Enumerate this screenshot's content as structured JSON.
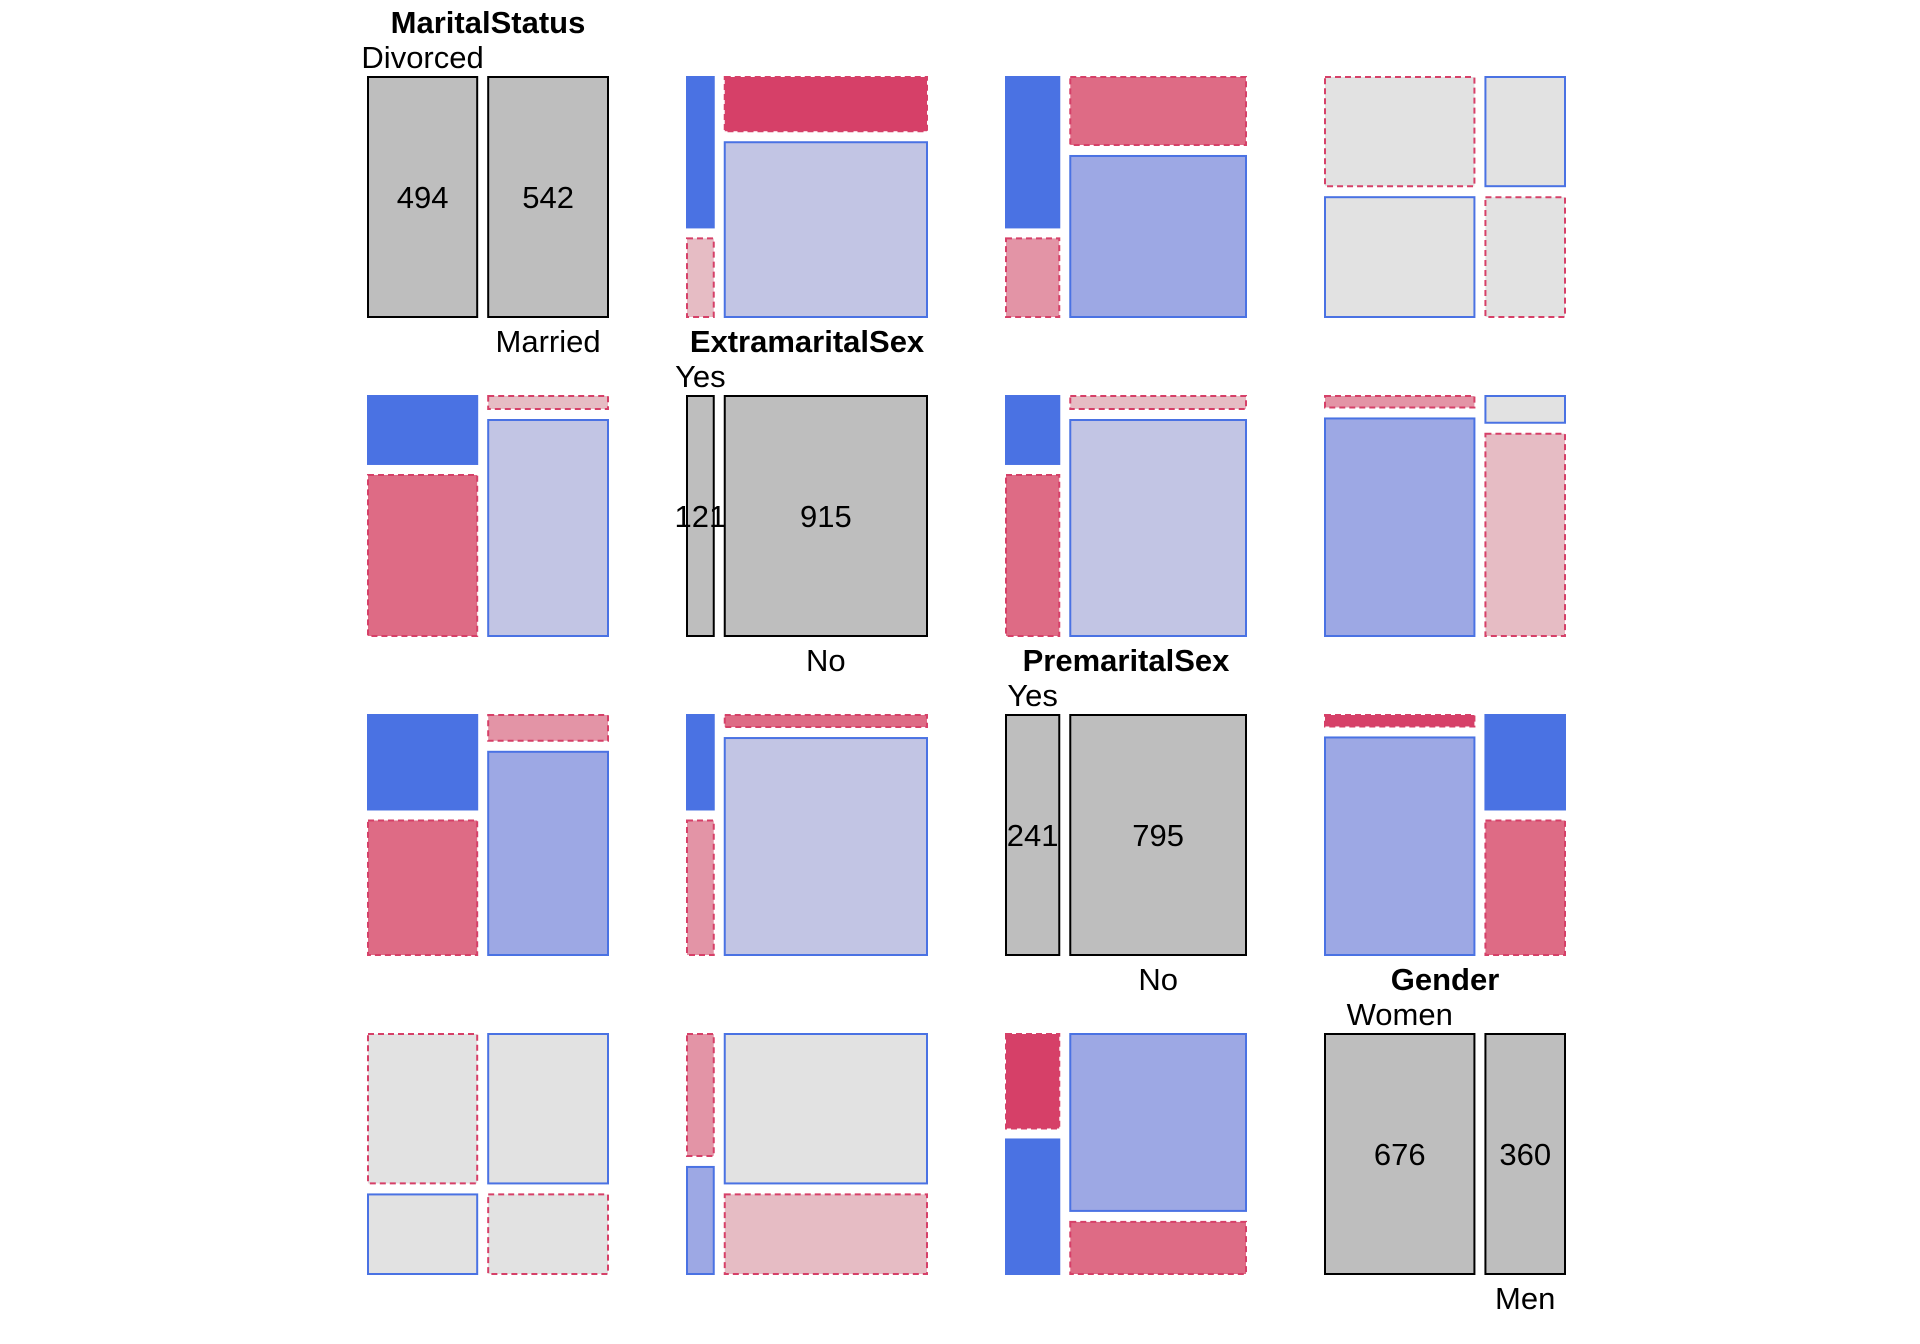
{
  "chart_data": {
    "type": "mosaic-pairs",
    "title": "",
    "variables": [
      {
        "name": "MaritalStatus",
        "levels": [
          "Divorced",
          "Married"
        ],
        "counts": [
          494,
          542
        ]
      },
      {
        "name": "ExtramaritalSex",
        "levels": [
          "Yes",
          "No"
        ],
        "counts": [
          121,
          915
        ]
      },
      {
        "name": "PremaritalSex",
        "levels": [
          "Yes",
          "No"
        ],
        "counts": [
          241,
          795
        ]
      },
      {
        "name": "Gender",
        "levels": [
          "Women",
          "Men"
        ],
        "counts": [
          676,
          360
        ]
      }
    ],
    "shading": "residual-based: blue solid = positive residual, red dashed = negative residual; darker = larger magnitude",
    "colors": {
      "diagonal": "#bebebe",
      "neutral": "#e2e2e2",
      "pos": [
        "#c2c5e4",
        "#9da8e4",
        "#4a72e3"
      ],
      "neg": [
        "#e6bcc4",
        "#e394a6",
        "#de6b85",
        "#d64068"
      ],
      "pos_border": "#4a72e3",
      "neg_border": "#d64068"
    },
    "cells": [
      {
        "row": 0,
        "col": 1,
        "shades": [
          [
            "p3",
            "n4"
          ],
          [
            "n1",
            "p1"
          ]
        ]
      },
      {
        "row": 0,
        "col": 2,
        "shades": [
          [
            "p3",
            "n3"
          ],
          [
            "n2",
            "p2"
          ]
        ]
      },
      {
        "row": 0,
        "col": 3,
        "shades": [
          [
            "n0",
            "p0"
          ],
          [
            "p0",
            "n0"
          ]
        ]
      },
      {
        "row": 1,
        "col": 0,
        "shades": [
          [
            "p3",
            "n1"
          ],
          [
            "n3",
            "p1"
          ]
        ]
      },
      {
        "row": 1,
        "col": 2,
        "shades": [
          [
            "p3",
            "n1"
          ],
          [
            "n3",
            "p1"
          ]
        ]
      },
      {
        "row": 1,
        "col": 3,
        "shades": [
          [
            "n2",
            "p0"
          ],
          [
            "p2",
            "n1"
          ]
        ]
      },
      {
        "row": 2,
        "col": 0,
        "shades": [
          [
            "p3",
            "n2"
          ],
          [
            "n3",
            "p2"
          ]
        ]
      },
      {
        "row": 2,
        "col": 1,
        "shades": [
          [
            "p3",
            "n3"
          ],
          [
            "n2",
            "p1"
          ]
        ]
      },
      {
        "row": 2,
        "col": 3,
        "shades": [
          [
            "n4",
            "p3"
          ],
          [
            "p2",
            "n3"
          ]
        ]
      },
      {
        "row": 3,
        "col": 0,
        "shades": [
          [
            "n0",
            "p0"
          ],
          [
            "p0",
            "n0"
          ]
        ]
      },
      {
        "row": 3,
        "col": 1,
        "shades": [
          [
            "n2",
            "p0"
          ],
          [
            "p2",
            "n1"
          ]
        ]
      },
      {
        "row": 3,
        "col": 2,
        "shades": [
          [
            "n4",
            "p2"
          ],
          [
            "p3",
            "n3"
          ]
        ]
      }
    ]
  }
}
